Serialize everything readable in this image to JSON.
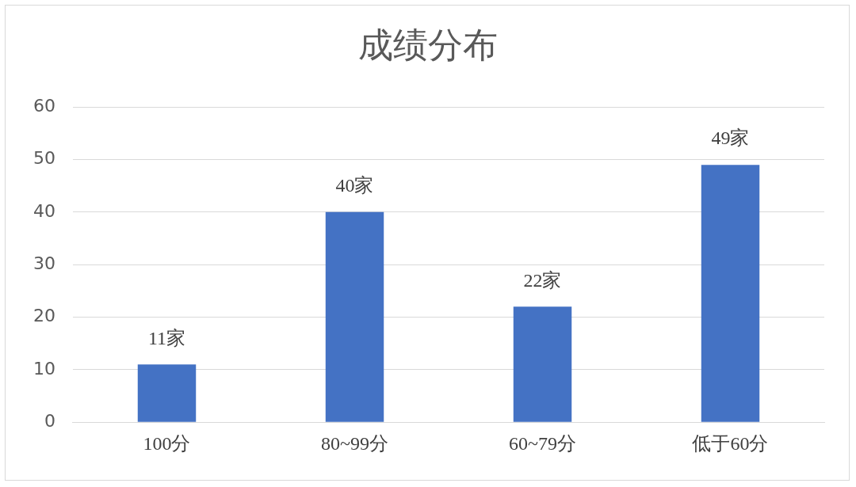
{
  "chart_data": {
    "type": "bar",
    "title": "成绩分布",
    "categories": [
      "100分",
      "80~99分",
      "60~79分",
      "低于60分"
    ],
    "values": [
      11,
      40,
      22,
      49
    ],
    "value_labels": [
      "11家",
      "40家",
      "22家",
      "49家"
    ],
    "color": "#4472c4",
    "ylim": [
      0,
      60
    ],
    "yticks": [
      0,
      10,
      20,
      30,
      40,
      50,
      60
    ],
    "grid": "y",
    "legend": false
  }
}
